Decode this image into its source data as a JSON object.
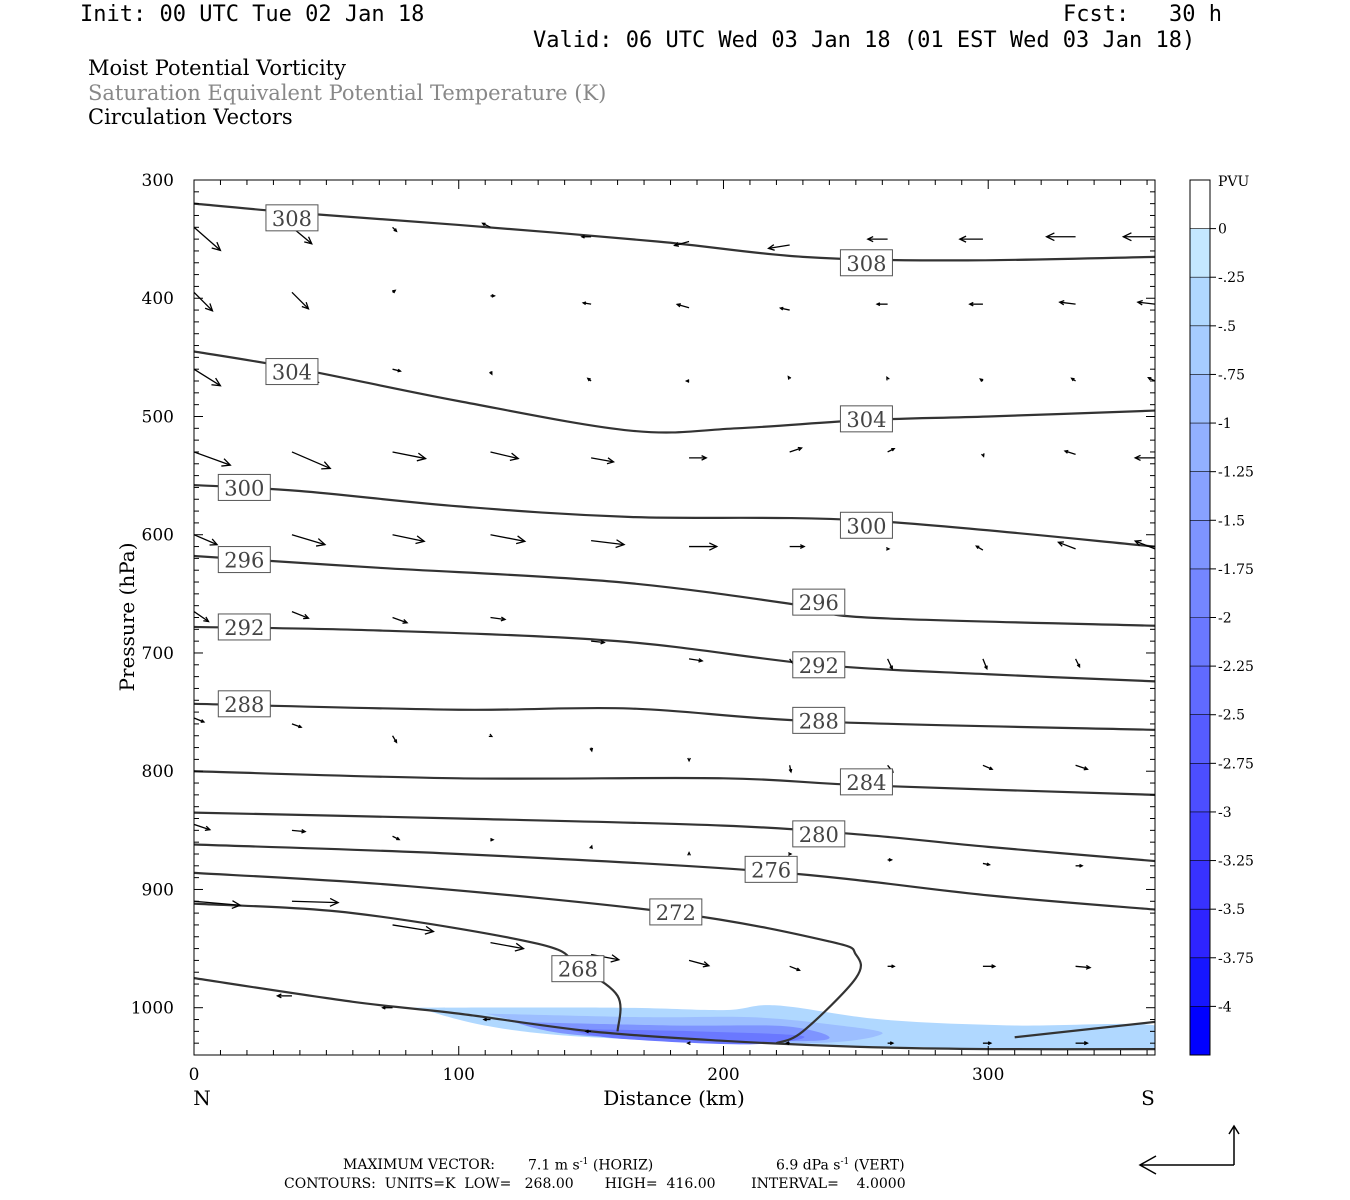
{
  "header": {
    "init": "Init: 00 UTC Tue 02 Jan 18",
    "fcst": "Fcst:   30 h",
    "valid": "Valid: 06 UTC Wed 03 Jan 18 (01 EST Wed 03 Jan 18)"
  },
  "legend": {
    "line1": "Moist Potential Vorticity",
    "line2": "Saturation Equivalent Potential Temperature (K)",
    "line3": "Circulation Vectors",
    "line2_color": "#888888"
  },
  "footer": {
    "max_vector_label": "MAXIMUM VECTOR:",
    "max_vector_horiz": "7.1 m s",
    "horiz_tag": "(HORIZ)",
    "max_vector_vert": "6.9 dPa s",
    "vert_tag": "(VERT)",
    "exponent": "-1",
    "contours": "CONTOURS:  UNITS=K  LOW=   268.00       HIGH=  416.00        INTERVAL=    4.0000"
  },
  "chart_data": {
    "type": "contour",
    "title": "Moist Potential Vorticity / Saturation Equivalent Potential Temperature (K) / Circulation Vectors",
    "xlabel": "Distance (km)",
    "ylabel": "Pressure (hPa)",
    "xlim": [
      0,
      363
    ],
    "ylim": [
      1040,
      300
    ],
    "x_ticks": [
      0,
      100,
      200,
      300
    ],
    "y_ticks": [
      300,
      400,
      500,
      600,
      700,
      800,
      900,
      1000
    ],
    "end_labels": {
      "left": "N",
      "right": "S"
    },
    "colorbar": {
      "unit": "PVU",
      "labels": [
        "0",
        "-.25",
        "-.5",
        "-.75",
        "-1",
        "-1.25",
        "-1.5",
        "-1.75",
        "-2",
        "-2.25",
        "-2.5",
        "-2.75",
        "-3",
        "-3.25",
        "-3.5",
        "-3.75",
        "-4"
      ],
      "colors": [
        "#ffffff",
        "#c4e8ff",
        "#b0d8ff",
        "#a6ccff",
        "#9cbeff",
        "#92b0ff",
        "#88a2ff",
        "#7e94ff",
        "#7486ff",
        "#6a78ff",
        "#606aff",
        "#565cff",
        "#4c4eff",
        "#4240ff",
        "#3832ff",
        "#2e24ff",
        "#1616ff",
        "#0000ff"
      ]
    },
    "contours": [
      {
        "value": 308,
        "points": [
          [
            0,
            320
          ],
          [
            40,
            328
          ],
          [
            100,
            338
          ],
          [
            175,
            352
          ],
          [
            230,
            365
          ],
          [
            290,
            368
          ],
          [
            363,
            365
          ]
        ],
        "labels": [
          [
            37,
            332
          ],
          [
            254,
            370
          ]
        ]
      },
      {
        "value": 304,
        "points": [
          [
            0,
            445
          ],
          [
            40,
            460
          ],
          [
            100,
            487
          ],
          [
            165,
            512
          ],
          [
            205,
            510
          ],
          [
            254,
            503
          ],
          [
            300,
            500
          ],
          [
            363,
            495
          ]
        ],
        "labels": [
          [
            37,
            462
          ],
          [
            254,
            502
          ]
        ]
      },
      {
        "value": 300,
        "points": [
          [
            0,
            558
          ],
          [
            40,
            563
          ],
          [
            100,
            576
          ],
          [
            165,
            585
          ],
          [
            254,
            588
          ],
          [
            363,
            610
          ]
        ],
        "labels": [
          [
            19,
            560
          ],
          [
            254,
            592
          ]
        ]
      },
      {
        "value": 296,
        "points": [
          [
            0,
            618
          ],
          [
            70,
            628
          ],
          [
            160,
            640
          ],
          [
            230,
            660
          ],
          [
            254,
            670
          ],
          [
            363,
            677
          ]
        ],
        "labels": [
          [
            19,
            621
          ],
          [
            236,
            657
          ]
        ]
      },
      {
        "value": 292,
        "points": [
          [
            0,
            678
          ],
          [
            70,
            681
          ],
          [
            160,
            690
          ],
          [
            236,
            710
          ],
          [
            300,
            718
          ],
          [
            363,
            724
          ]
        ],
        "labels": [
          [
            19,
            678
          ],
          [
            236,
            710
          ]
        ]
      },
      {
        "value": 288,
        "points": [
          [
            0,
            743
          ],
          [
            100,
            748
          ],
          [
            165,
            747
          ],
          [
            236,
            758
          ],
          [
            363,
            765
          ]
        ],
        "labels": [
          [
            19,
            743
          ],
          [
            236,
            757
          ]
        ]
      },
      {
        "value": 284,
        "points": [
          [
            0,
            800
          ],
          [
            100,
            806
          ],
          [
            200,
            806
          ],
          [
            254,
            812
          ],
          [
            363,
            820
          ]
        ],
        "labels": [
          [
            254,
            809
          ]
        ]
      },
      {
        "value": 280,
        "points": [
          [
            0,
            835
          ],
          [
            100,
            840
          ],
          [
            200,
            846
          ],
          [
            254,
            854
          ],
          [
            300,
            864
          ],
          [
            363,
            876
          ]
        ],
        "labels": [
          [
            236,
            853
          ]
        ]
      },
      {
        "value": 276,
        "points": [
          [
            0,
            862
          ],
          [
            100,
            870
          ],
          [
            218,
            885
          ],
          [
            300,
            905
          ],
          [
            363,
            917
          ]
        ],
        "labels": [
          [
            218,
            883
          ]
        ]
      },
      {
        "value": 272,
        "points": [
          [
            0,
            886
          ],
          [
            80,
            897
          ],
          [
            182,
            920
          ],
          [
            240,
            944
          ],
          [
            250,
            955
          ],
          [
            250,
            975
          ],
          [
            230,
            1020
          ],
          [
            220,
            1030
          ]
        ],
        "labels": [
          [
            182,
            919
          ]
        ]
      },
      {
        "value": 268,
        "points": [
          [
            0,
            912
          ],
          [
            60,
            920
          ],
          [
            130,
            946
          ],
          [
            145,
            965
          ],
          [
            160,
            990
          ],
          [
            160,
            1020
          ]
        ],
        "labels": [
          [
            145,
            967
          ]
        ]
      },
      {
        "value": null,
        "points": [
          [
            0,
            975
          ],
          [
            60,
            995
          ],
          [
            100,
            1005
          ],
          [
            150,
            1020
          ],
          [
            200,
            1028
          ],
          [
            250,
            1033
          ],
          [
            300,
            1035
          ],
          [
            363,
            1035
          ]
        ],
        "labels": []
      },
      {
        "value": null,
        "points": [
          [
            310,
            1025
          ],
          [
            363,
            1012
          ]
        ],
        "labels": []
      }
    ],
    "pv_shading": [
      {
        "level": "-.25",
        "points": [
          [
            83,
            1000
          ],
          [
            160,
            1000
          ],
          [
            200,
            1002
          ],
          [
            220,
            998
          ],
          [
            260,
            1010
          ],
          [
            310,
            1015
          ],
          [
            363,
            1015
          ],
          [
            363,
            1035
          ],
          [
            150,
            1025
          ]
        ]
      },
      {
        "level": "-.75",
        "points": [
          [
            110,
            1005
          ],
          [
            170,
            1008
          ],
          [
            210,
            1008
          ],
          [
            240,
            1014
          ],
          [
            260,
            1022
          ],
          [
            230,
            1030
          ],
          [
            150,
            1022
          ]
        ]
      },
      {
        "level": "-1.5",
        "points": [
          [
            120,
            1012
          ],
          [
            180,
            1015
          ],
          [
            225,
            1016
          ],
          [
            235,
            1028
          ],
          [
            150,
            1024
          ]
        ]
      },
      {
        "level": "-2",
        "points": [
          [
            140,
            1018
          ],
          [
            190,
            1020
          ],
          [
            230,
            1024
          ],
          [
            210,
            1031
          ],
          [
            160,
            1026
          ]
        ]
      }
    ],
    "vectors": [
      {
        "x": 0,
        "p": 340,
        "u": 4,
        "v": -3.5
      },
      {
        "x": 37,
        "p": 340,
        "u": 3,
        "v": -2.5
      },
      {
        "x": 75,
        "p": 340,
        "u": 0.6,
        "v": -0.6
      },
      {
        "x": 112,
        "p": 340,
        "u": -1.2,
        "v": 0.6
      },
      {
        "x": 150,
        "p": 348,
        "u": -1.4,
        "v": 0
      },
      {
        "x": 187,
        "p": 352,
        "u": -2.2,
        "v": -0.6
      },
      {
        "x": 225,
        "p": 355,
        "u": -3.2,
        "v": -0.5
      },
      {
        "x": 262,
        "p": 350,
        "u": -3,
        "v": 0
      },
      {
        "x": 298,
        "p": 350,
        "u": -3.5,
        "v": 0
      },
      {
        "x": 333,
        "p": 348,
        "u": -4.4,
        "v": 0
      },
      {
        "x": 363,
        "p": 348,
        "u": -4.8,
        "v": 0
      },
      {
        "x": 0,
        "p": 395,
        "u": 2.8,
        "v": -2.8
      },
      {
        "x": 37,
        "p": 395,
        "u": 2.5,
        "v": -2.5
      },
      {
        "x": 75,
        "p": 395,
        "u": 0.4,
        "v": 0.3
      },
      {
        "x": 112,
        "p": 398,
        "u": 0.6,
        "v": 0
      },
      {
        "x": 150,
        "p": 405,
        "u": -1.2,
        "v": 0.2
      },
      {
        "x": 187,
        "p": 408,
        "u": -1.8,
        "v": 0.5
      },
      {
        "x": 225,
        "p": 410,
        "u": -1.4,
        "v": 0.3
      },
      {
        "x": 262,
        "p": 405,
        "u": -1.6,
        "v": 0
      },
      {
        "x": 298,
        "p": 405,
        "u": -2,
        "v": 0
      },
      {
        "x": 333,
        "p": 405,
        "u": -2.4,
        "v": 0.3
      },
      {
        "x": 363,
        "p": 405,
        "u": -2.6,
        "v": 0.3
      },
      {
        "x": 0,
        "p": 460,
        "u": 4,
        "v": -2.5
      },
      {
        "x": 37,
        "p": 460,
        "u": 4,
        "v": -2
      },
      {
        "x": 75,
        "p": 460,
        "u": 1.2,
        "v": -0.3
      },
      {
        "x": 112,
        "p": 462,
        "u": 0.2,
        "v": -0.4
      },
      {
        "x": 150,
        "p": 470,
        "u": -0.5,
        "v": 0.4
      },
      {
        "x": 187,
        "p": 470,
        "u": -0.4,
        "v": 0
      },
      {
        "x": 225,
        "p": 468,
        "u": -0.2,
        "v": 0.3
      },
      {
        "x": 262,
        "p": 468,
        "u": -0.1,
        "v": 0.2
      },
      {
        "x": 298,
        "p": 470,
        "u": -0.4,
        "v": 0.3
      },
      {
        "x": 333,
        "p": 470,
        "u": -0.6,
        "v": 0.4
      },
      {
        "x": 363,
        "p": 470,
        "u": -1,
        "v": 0.5
      },
      {
        "x": 0,
        "p": 530,
        "u": 5.5,
        "v": -2
      },
      {
        "x": 37,
        "p": 530,
        "u": 5.8,
        "v": -2.5
      },
      {
        "x": 75,
        "p": 530,
        "u": 5,
        "v": -1
      },
      {
        "x": 112,
        "p": 530,
        "u": 4.2,
        "v": -1
      },
      {
        "x": 150,
        "p": 535,
        "u": 3.4,
        "v": -0.6
      },
      {
        "x": 187,
        "p": 535,
        "u": 2.6,
        "v": 0
      },
      {
        "x": 225,
        "p": 530,
        "u": 1.8,
        "v": 0.6
      },
      {
        "x": 262,
        "p": 530,
        "u": 1,
        "v": 0.5
      },
      {
        "x": 298,
        "p": 532,
        "u": 0.1,
        "v": -0.3
      },
      {
        "x": 333,
        "p": 532,
        "u": -1.6,
        "v": 0.5
      },
      {
        "x": 363,
        "p": 535,
        "u": -3,
        "v": 0
      },
      {
        "x": 0,
        "p": 600,
        "u": 3.5,
        "v": -1.5
      },
      {
        "x": 37,
        "p": 600,
        "u": 5,
        "v": -1.5
      },
      {
        "x": 75,
        "p": 600,
        "u": 4.8,
        "v": -1
      },
      {
        "x": 112,
        "p": 600,
        "u": 5.2,
        "v": -1
      },
      {
        "x": 150,
        "p": 605,
        "u": 5,
        "v": -0.6
      },
      {
        "x": 187,
        "p": 610,
        "u": 4.2,
        "v": 0
      },
      {
        "x": 225,
        "p": 610,
        "u": 2.2,
        "v": 0
      },
      {
        "x": 262,
        "p": 612,
        "u": 0.2,
        "v": 0
      },
      {
        "x": 298,
        "p": 613,
        "u": -1,
        "v": 0.6
      },
      {
        "x": 333,
        "p": 612,
        "u": -2.6,
        "v": 1
      },
      {
        "x": 363,
        "p": 612,
        "u": -3,
        "v": 1.2
      },
      {
        "x": 0,
        "p": 665,
        "u": 2.2,
        "v": -1.5
      },
      {
        "x": 37,
        "p": 665,
        "u": 2.5,
        "v": -1
      },
      {
        "x": 75,
        "p": 670,
        "u": 2.2,
        "v": -0.8
      },
      {
        "x": 112,
        "p": 670,
        "u": 2.2,
        "v": -0.3
      },
      {
        "x": 150,
        "p": 690,
        "u": 2,
        "v": -0.2
      },
      {
        "x": 187,
        "p": 705,
        "u": 2,
        "v": -0.3
      },
      {
        "x": 225,
        "p": 705,
        "u": 1,
        "v": -1.5
      },
      {
        "x": 262,
        "p": 705,
        "u": 0.7,
        "v": -1.5
      },
      {
        "x": 298,
        "p": 705,
        "u": 0.6,
        "v": -1.5
      },
      {
        "x": 333,
        "p": 705,
        "u": 0.6,
        "v": -1.2
      },
      {
        "x": 0,
        "p": 755,
        "u": 1.5,
        "v": -0.6
      },
      {
        "x": 37,
        "p": 760,
        "u": 1.4,
        "v": -0.5
      },
      {
        "x": 75,
        "p": 770,
        "u": 0.6,
        "v": -1
      },
      {
        "x": 112,
        "p": 770,
        "u": 0.2,
        "v": -0.1
      },
      {
        "x": 150,
        "p": 780,
        "u": 0.1,
        "v": -0.5
      },
      {
        "x": 187,
        "p": 790,
        "u": 0,
        "v": -0.2
      },
      {
        "x": 225,
        "p": 795,
        "u": 0.2,
        "v": -1
      },
      {
        "x": 262,
        "p": 795,
        "u": 0.8,
        "v": -1
      },
      {
        "x": 298,
        "p": 795,
        "u": 1.4,
        "v": -0.6
      },
      {
        "x": 333,
        "p": 795,
        "u": 1.8,
        "v": -0.6
      },
      {
        "x": 0,
        "p": 845,
        "u": 2.4,
        "v": -0.8
      },
      {
        "x": 37,
        "p": 850,
        "u": 2,
        "v": -0.2
      },
      {
        "x": 75,
        "p": 855,
        "u": 1,
        "v": -0.5
      },
      {
        "x": 112,
        "p": 858,
        "u": 0.4,
        "v": 0
      },
      {
        "x": 150,
        "p": 865,
        "u": 0.1,
        "v": 0.3
      },
      {
        "x": 187,
        "p": 870,
        "u": 0,
        "v": 0.2
      },
      {
        "x": 225,
        "p": 870,
        "u": 0.2,
        "v": 0
      },
      {
        "x": 262,
        "p": 875,
        "u": 0.6,
        "v": 0
      },
      {
        "x": 298,
        "p": 878,
        "u": 1,
        "v": -0.2
      },
      {
        "x": 333,
        "p": 880,
        "u": 1,
        "v": 0
      },
      {
        "x": 0,
        "p": 910,
        "u": 7,
        "v": -0.6
      },
      {
        "x": 37,
        "p": 910,
        "u": 7,
        "v": -0.2
      },
      {
        "x": 75,
        "p": 930,
        "u": 6.2,
        "v": -1
      },
      {
        "x": 112,
        "p": 945,
        "u": 5,
        "v": -0.9
      },
      {
        "x": 150,
        "p": 955,
        "u": 4.2,
        "v": -0.8
      },
      {
        "x": 187,
        "p": 960,
        "u": 3,
        "v": -0.8
      },
      {
        "x": 225,
        "p": 965,
        "u": 1.5,
        "v": -0.6
      },
      {
        "x": 262,
        "p": 965,
        "u": 1,
        "v": 0
      },
      {
        "x": 298,
        "p": 965,
        "u": 1.8,
        "v": 0
      },
      {
        "x": 333,
        "p": 965,
        "u": 2.2,
        "v": -0.2
      },
      {
        "x": 0,
        "p": 985,
        "u": -2.2,
        "v": 0
      },
      {
        "x": 37,
        "p": 990,
        "u": -2.2,
        "v": 0
      },
      {
        "x": 75,
        "p": 1000,
        "u": -1.5,
        "v": 0
      },
      {
        "x": 112,
        "p": 1010,
        "u": -1,
        "v": 0
      },
      {
        "x": 150,
        "p": 1020,
        "u": -0.8,
        "v": 0
      },
      {
        "x": 187,
        "p": 1030,
        "u": -0.2,
        "v": 0
      },
      {
        "x": 225,
        "p": 1030,
        "u": -0.5,
        "v": 0
      },
      {
        "x": 262,
        "p": 1030,
        "u": 0.8,
        "v": 0
      },
      {
        "x": 298,
        "p": 1030,
        "u": 1.2,
        "v": 0
      },
      {
        "x": 333,
        "p": 1030,
        "u": 1.8,
        "v": 0
      }
    ]
  }
}
